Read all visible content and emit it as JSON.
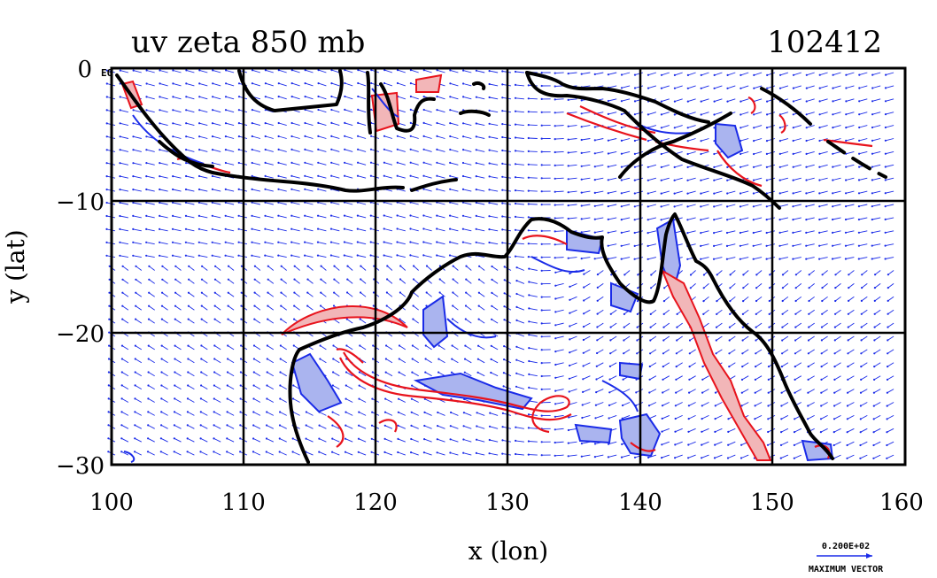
{
  "title": "uv zeta 850 mb",
  "time_label": "102412",
  "xlabel": "x (lon)",
  "ylabel": "y (lat)",
  "corner_tick": "E0",
  "x_ticks": [
    "100",
    "110",
    "120",
    "130",
    "140",
    "150",
    "160"
  ],
  "y_ticks": [
    "0",
    "−10",
    "−20",
    "−30"
  ],
  "legend": {
    "magnitude": "0.200E+02",
    "label": "MAXIMUM VECTOR"
  },
  "colors": {
    "positive_contour": "#e8131c",
    "positive_fill": "#f2b6b8",
    "negative_contour": "#1a2be8",
    "negative_fill": "#aab4ef",
    "vectors": "#1a2be8",
    "coast": "#000000",
    "grid": "#000000"
  },
  "chart_data": {
    "type": "map",
    "projection": "lon-lat",
    "xlim": [
      100,
      160
    ],
    "ylim": [
      -30,
      0
    ],
    "grid": true,
    "grid_lon": [
      110,
      120,
      130,
      140,
      150
    ],
    "grid_lat": [
      -10,
      -20
    ],
    "fields": [
      "wind vectors (u,v)",
      "relative vorticity zeta"
    ],
    "level": "850 mb",
    "max_vector": 20
  }
}
